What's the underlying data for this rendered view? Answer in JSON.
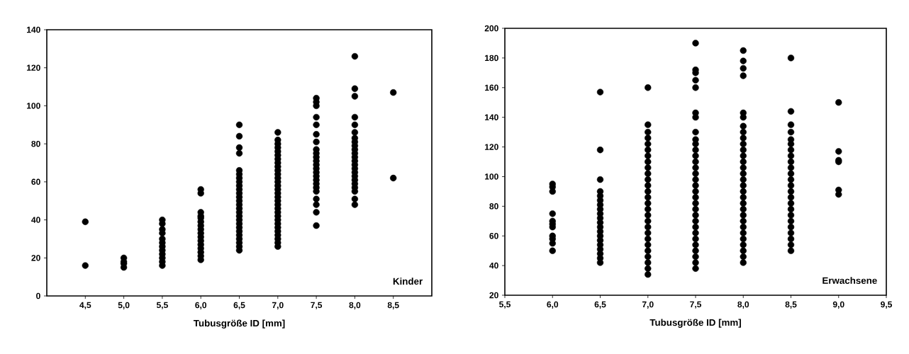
{
  "chart_data": [
    {
      "type": "scatter",
      "xlabel": "Tubusgröße ID [mm]",
      "annotations": [
        "Kinder"
      ],
      "marker": "circle",
      "xlim": [
        4.0,
        9.0
      ],
      "ylim": [
        0,
        140
      ],
      "xticks": [
        {
          "value": 4.5,
          "label": "4,5"
        },
        {
          "value": 5.0,
          "label": "5,0"
        },
        {
          "value": 5.5,
          "label": "5,5"
        },
        {
          "value": 6.0,
          "label": "6,0"
        },
        {
          "value": 6.5,
          "label": "6,5"
        },
        {
          "value": 7.0,
          "label": "7,0"
        },
        {
          "value": 7.5,
          "label": "7,5"
        },
        {
          "value": 8.0,
          "label": "8,0"
        },
        {
          "value": 8.5,
          "label": "8,5"
        }
      ],
      "yticks": [
        0,
        20,
        40,
        60,
        80,
        100,
        120,
        140
      ],
      "series": [
        {
          "color": "#000000",
          "x": [
            4.5,
            4.5,
            5.0,
            5.0,
            5.0,
            5.0,
            5.5,
            5.5,
            5.5,
            5.5,
            5.5,
            5.5,
            5.5,
            5.5,
            5.5,
            5.5,
            5.5,
            5.5,
            6.0,
            6.0,
            6.0,
            6.0,
            6.0,
            6.0,
            6.0,
            6.0,
            6.0,
            6.0,
            6.0,
            6.0,
            6.0,
            6.0,
            6.0,
            6.0,
            6.5,
            6.5,
            6.5,
            6.5,
            6.5,
            6.5,
            6.5,
            6.5,
            6.5,
            6.5,
            6.5,
            6.5,
            6.5,
            6.5,
            6.5,
            6.5,
            6.5,
            6.5,
            6.5,
            6.5,
            6.5,
            6.5,
            6.5,
            6.5,
            6.5,
            6.5,
            7.0,
            7.0,
            7.0,
            7.0,
            7.0,
            7.0,
            7.0,
            7.0,
            7.0,
            7.0,
            7.0,
            7.0,
            7.0,
            7.0,
            7.0,
            7.0,
            7.0,
            7.0,
            7.0,
            7.0,
            7.0,
            7.0,
            7.0,
            7.0,
            7.0,
            7.0,
            7.0,
            7.0,
            7.0,
            7.0,
            7.5,
            7.5,
            7.5,
            7.5,
            7.5,
            7.5,
            7.5,
            7.5,
            7.5,
            7.5,
            7.5,
            7.5,
            7.5,
            7.5,
            7.5,
            7.5,
            7.5,
            7.5,
            7.5,
            7.5,
            7.5,
            7.5,
            7.5,
            8.0,
            8.0,
            8.0,
            8.0,
            8.0,
            8.0,
            8.0,
            8.0,
            8.0,
            8.0,
            8.0,
            8.0,
            8.0,
            8.0,
            8.0,
            8.0,
            8.0,
            8.0,
            8.0,
            8.0,
            8.0,
            8.0,
            8.0,
            8.5,
            8.5
          ],
          "values": [
            16,
            39,
            15,
            17,
            18,
            20,
            16,
            18,
            20,
            22,
            24,
            26,
            28,
            30,
            33,
            35,
            38,
            40,
            19,
            21,
            23,
            25,
            27,
            29,
            31,
            33,
            35,
            37,
            39,
            41,
            42,
            44,
            54,
            56,
            24,
            26,
            28,
            30,
            32,
            34,
            36,
            38,
            40,
            42,
            44,
            46,
            48,
            50,
            52,
            54,
            56,
            58,
            60,
            62,
            64,
            66,
            75,
            78,
            84,
            90,
            26,
            28,
            30,
            32,
            34,
            36,
            38,
            40,
            42,
            44,
            46,
            48,
            50,
            52,
            54,
            56,
            58,
            60,
            62,
            64,
            66,
            68,
            70,
            72,
            74,
            76,
            78,
            80,
            82,
            86,
            37,
            44,
            48,
            51,
            55,
            57,
            59,
            61,
            63,
            65,
            67,
            69,
            71,
            73,
            75,
            77,
            81,
            85,
            90,
            94,
            100,
            102,
            104,
            48,
            51,
            55,
            57,
            59,
            61,
            63,
            65,
            67,
            69,
            71,
            73,
            75,
            77,
            79,
            81,
            83,
            86,
            90,
            94,
            105,
            109,
            126,
            62,
            107
          ]
        }
      ]
    },
    {
      "type": "scatter",
      "xlabel": "Tubusgröße ID [mm]",
      "annotations": [
        "Erwachsene"
      ],
      "marker": "circle",
      "xlim": [
        5.5,
        9.5
      ],
      "ylim": [
        20,
        200
      ],
      "xticks": [
        {
          "value": 5.5,
          "label": "5,5"
        },
        {
          "value": 6.0,
          "label": "6,0"
        },
        {
          "value": 6.5,
          "label": "6,5"
        },
        {
          "value": 7.0,
          "label": "7,0"
        },
        {
          "value": 7.5,
          "label": "7,5"
        },
        {
          "value": 8.0,
          "label": "8,0"
        },
        {
          "value": 8.5,
          "label": "8,5"
        },
        {
          "value": 9.0,
          "label": "9,0"
        },
        {
          "value": 9.5,
          "label": "9,5"
        }
      ],
      "yticks": [
        20,
        40,
        60,
        80,
        100,
        120,
        140,
        160,
        180,
        200
      ],
      "series": [
        {
          "color": "#000000",
          "x": [
            6.0,
            6.0,
            6.0,
            6.0,
            6.0,
            6.0,
            6.0,
            6.0,
            6.0,
            6.0,
            6.0,
            6.5,
            6.5,
            6.5,
            6.5,
            6.5,
            6.5,
            6.5,
            6.5,
            6.5,
            6.5,
            6.5,
            6.5,
            6.5,
            6.5,
            6.5,
            6.5,
            6.5,
            6.5,
            6.5,
            6.5,
            7.0,
            7.0,
            7.0,
            7.0,
            7.0,
            7.0,
            7.0,
            7.0,
            7.0,
            7.0,
            7.0,
            7.0,
            7.0,
            7.0,
            7.0,
            7.0,
            7.0,
            7.0,
            7.0,
            7.0,
            7.0,
            7.0,
            7.0,
            7.0,
            7.0,
            7.0,
            7.0,
            7.5,
            7.5,
            7.5,
            7.5,
            7.5,
            7.5,
            7.5,
            7.5,
            7.5,
            7.5,
            7.5,
            7.5,
            7.5,
            7.5,
            7.5,
            7.5,
            7.5,
            7.5,
            7.5,
            7.5,
            7.5,
            7.5,
            7.5,
            7.5,
            7.5,
            7.5,
            7.5,
            7.5,
            7.5,
            7.5,
            7.5,
            8.0,
            8.0,
            8.0,
            8.0,
            8.0,
            8.0,
            8.0,
            8.0,
            8.0,
            8.0,
            8.0,
            8.0,
            8.0,
            8.0,
            8.0,
            8.0,
            8.0,
            8.0,
            8.0,
            8.0,
            8.0,
            8.0,
            8.0,
            8.0,
            8.0,
            8.0,
            8.0,
            8.0,
            8.0,
            8.0,
            8.5,
            8.5,
            8.5,
            8.5,
            8.5,
            8.5,
            8.5,
            8.5,
            8.5,
            8.5,
            8.5,
            8.5,
            8.5,
            8.5,
            8.5,
            8.5,
            8.5,
            8.5,
            8.5,
            8.5,
            8.5,
            8.5,
            8.5,
            8.5,
            9.0,
            9.0,
            9.0,
            9.0,
            9.0,
            9.0
          ],
          "values": [
            50,
            55,
            58,
            60,
            66,
            68,
            70,
            75,
            90,
            93,
            95,
            42,
            45,
            48,
            51,
            54,
            57,
            60,
            63,
            66,
            69,
            72,
            75,
            78,
            81,
            84,
            87,
            90,
            98,
            118,
            157,
            34,
            38,
            42,
            46,
            50,
            54,
            58,
            62,
            66,
            70,
            74,
            78,
            82,
            86,
            90,
            94,
            98,
            102,
            106,
            110,
            114,
            118,
            122,
            126,
            130,
            135,
            160,
            38,
            42,
            46,
            50,
            54,
            58,
            62,
            66,
            70,
            74,
            78,
            82,
            86,
            90,
            94,
            98,
            102,
            106,
            110,
            114,
            118,
            122,
            125,
            130,
            140,
            143,
            160,
            165,
            170,
            172,
            190,
            42,
            46,
            50,
            54,
            58,
            62,
            66,
            70,
            74,
            78,
            82,
            86,
            90,
            94,
            98,
            102,
            106,
            110,
            114,
            118,
            122,
            126,
            130,
            134,
            140,
            143,
            168,
            173,
            178,
            185,
            50,
            54,
            58,
            62,
            66,
            70,
            74,
            78,
            82,
            86,
            90,
            94,
            98,
            102,
            106,
            110,
            114,
            118,
            122,
            125,
            130,
            135,
            144,
            180,
            88,
            91,
            110,
            111,
            117,
            150
          ]
        }
      ]
    }
  ]
}
